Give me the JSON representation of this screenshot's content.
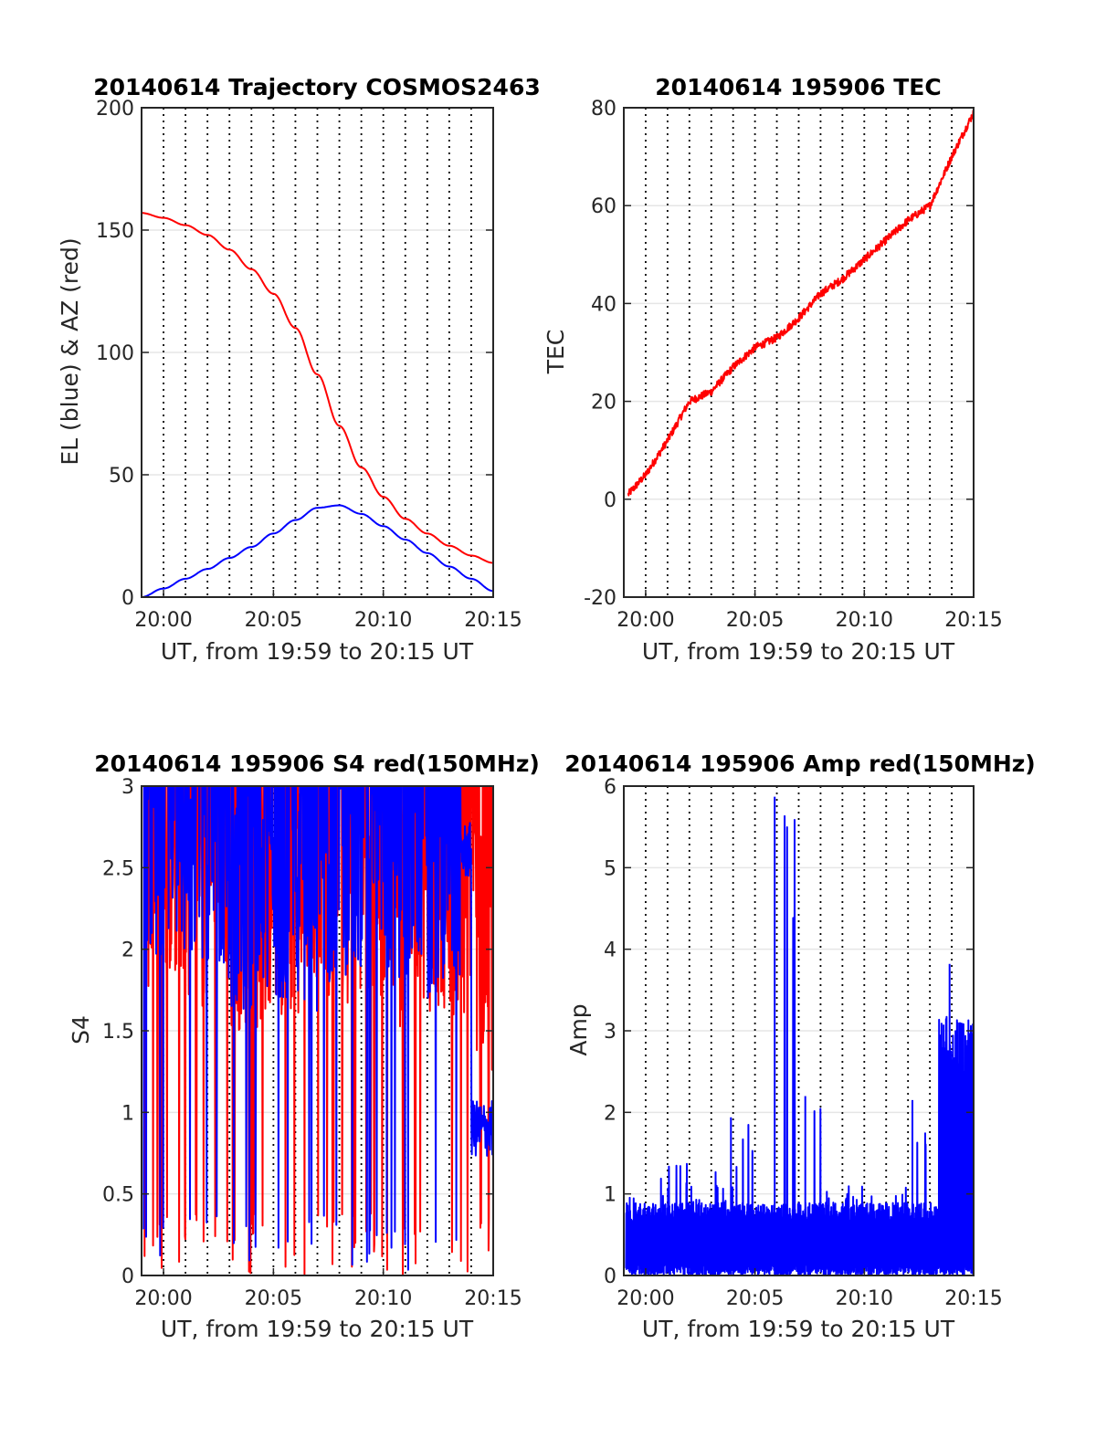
{
  "figure": {
    "panels": [
      {
        "title": "20140614 Trajectory COSMOS2463",
        "xlabel": "UT, from 19:59 to 20:15 UT",
        "ylabel": "EL (blue) & AZ (red)"
      },
      {
        "title": "20140614 195906 TEC",
        "xlabel": "UT, from 19:59 to 20:15 UT",
        "ylabel": "TEC"
      },
      {
        "title": "20140614 195906 S4 red(150MHz)",
        "xlabel": "UT, from 19:59 to 20:15 UT",
        "ylabel": "S4"
      },
      {
        "title": "20140614 195906 Amp red(150MHz)",
        "xlabel": "UT, from 19:59 to 20:15 UT",
        "ylabel": "Amp"
      }
    ]
  },
  "chart_data": [
    {
      "type": "line",
      "title": "20140614 Trajectory COSMOS2463",
      "xlabel": "UT, from 19:59 to 20:15 UT",
      "ylabel": "EL (blue) & AZ (red)",
      "xlim": [
        "19:59",
        "20:15"
      ],
      "ylim": [
        0,
        200
      ],
      "xticks": [
        "20:00",
        "20:05",
        "20:10",
        "20:15"
      ],
      "yticks": [
        0,
        50,
        100,
        150,
        200
      ],
      "grid": "vertical dotted lines every minute, horizontal at y ticks",
      "x": [
        "19:59",
        "20:00",
        "20:01",
        "20:02",
        "20:03",
        "20:04",
        "20:05",
        "20:06",
        "20:07",
        "20:08",
        "20:09",
        "20:10",
        "20:11",
        "20:12",
        "20:13",
        "20:14",
        "20:15"
      ],
      "series": [
        {
          "color": "#ff0000",
          "values": [
            157,
            155,
            152,
            148,
            142,
            134,
            124,
            110,
            91,
            70,
            53,
            41,
            32,
            26,
            21,
            17,
            14
          ]
        },
        {
          "color": "#0000ff",
          "values": [
            0,
            3.5,
            7.5,
            11.5,
            16,
            20.5,
            26,
            31.5,
            36.5,
            37.5,
            34,
            29,
            23.5,
            18,
            12.5,
            7.5,
            2.5
          ]
        }
      ]
    },
    {
      "type": "line",
      "title": "20140614 195906 TEC",
      "xlabel": "UT, from 19:59 to 20:15 UT",
      "ylabel": "TEC",
      "xlim": [
        "19:59",
        "20:15"
      ],
      "ylim": [
        -20,
        80
      ],
      "xticks": [
        "20:00",
        "20:05",
        "20:10",
        "20:15"
      ],
      "yticks": [
        -20,
        0,
        20,
        40,
        60,
        80
      ],
      "grid": "vertical dotted lines every minute, horizontal at y ticks",
      "x": [
        "19:59",
        "20:00",
        "20:01",
        "20:02",
        "20:03",
        "20:04",
        "20:05",
        "20:06",
        "20:07",
        "20:08",
        "20:09",
        "20:10",
        "20:11",
        "20:12",
        "20:13",
        "20:14",
        "20:15"
      ],
      "series": [
        {
          "color": "#ff0000",
          "values": [
            0,
            5,
            12,
            20,
            22,
            27,
            31,
            33,
            37,
            42,
            45,
            49,
            53,
            57,
            60,
            70,
            79
          ]
        }
      ]
    },
    {
      "type": "line",
      "title": "20140614 195906 S4 red(150MHz)",
      "xlabel": "UT, from 19:59 to 20:15 UT",
      "ylabel": "S4",
      "xlim": [
        "19:59",
        "20:15"
      ],
      "ylim": [
        0,
        3
      ],
      "xticks": [
        "20:00",
        "20:05",
        "20:10",
        "20:15"
      ],
      "yticks": [
        0,
        0.5,
        1,
        1.5,
        2,
        2.5,
        3
      ],
      "grid": "vertical dotted lines every minute, horizontal at y ticks",
      "x": [
        "19:59",
        "20:00",
        "20:01",
        "20:02",
        "20:03",
        "20:04",
        "20:05",
        "20:06",
        "20:07",
        "20:08",
        "20:09",
        "20:10",
        "20:11",
        "20:12",
        "20:13",
        "20:14",
        "20:15"
      ],
      "series": [
        {
          "color": "#ff0000",
          "values": [
            2.5,
            2.6,
            2.4,
            2.5,
            2.3,
            2.3,
            2.4,
            2.3,
            2.5,
            2.4,
            2.5,
            2.3,
            2.5,
            2.4,
            2.4,
            2.0,
            2.0
          ]
        },
        {
          "color": "#0000ff",
          "values": [
            2.7,
            2.8,
            2.6,
            2.6,
            2.4,
            2.5,
            2.5,
            2.4,
            2.6,
            2.5,
            2.6,
            2.5,
            2.6,
            2.5,
            2.6,
            0.9,
            0.9
          ]
        }
      ]
    },
    {
      "type": "line",
      "title": "20140614 195906 Amp red(150MHz)",
      "xlabel": "UT, from 19:59 to 20:15 UT",
      "ylabel": "Amp",
      "xlim": [
        "19:59",
        "20:15"
      ],
      "ylim": [
        0,
        6
      ],
      "xticks": [
        "20:00",
        "20:05",
        "20:10",
        "20:15"
      ],
      "yticks": [
        0,
        1,
        2,
        3,
        4,
        5,
        6
      ],
      "grid": "vertical dotted lines every minute, horizontal at y ticks",
      "x": [
        "19:59",
        "20:00",
        "20:01",
        "20:02",
        "20:03",
        "20:04",
        "20:05",
        "20:06",
        "20:07",
        "20:08",
        "20:09",
        "20:10",
        "20:11",
        "20:12",
        "20:13",
        "20:14",
        "20:15"
      ],
      "series": [
        {
          "color": "#0000ff",
          "values": [
            1.1,
            1.3,
            1.5,
            1.2,
            1.3,
            1.9,
            1.0,
            5.9,
            2.2,
            1.1,
            1.1,
            1.0,
            1.1,
            2.2,
            3.3,
            3.8,
            3.3
          ]
        }
      ]
    }
  ]
}
